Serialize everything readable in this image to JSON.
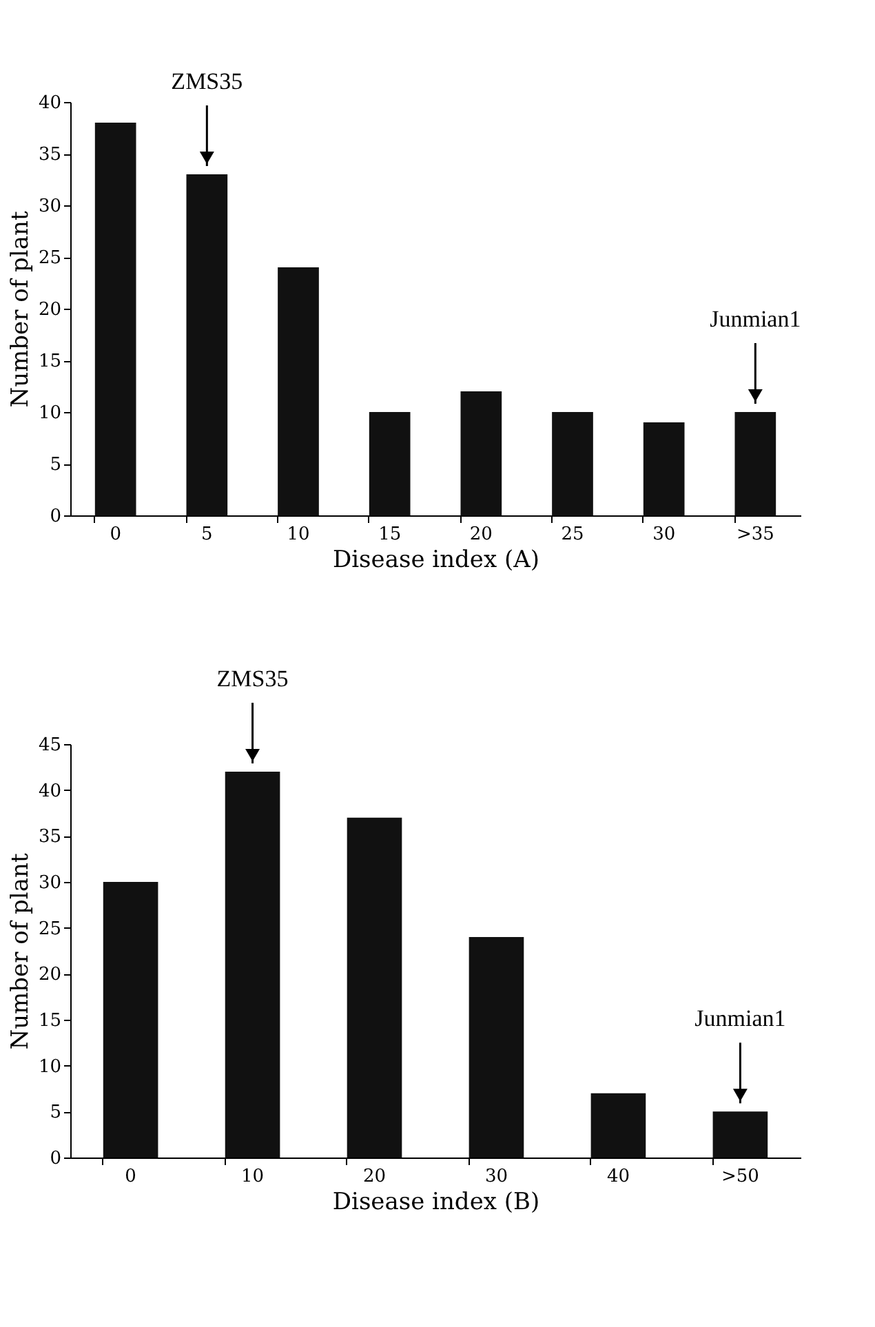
{
  "chart_data": [
    {
      "type": "bar",
      "xlabel": "Disease index (A)",
      "ylabel": "Number of plant",
      "categories": [
        "0",
        "5",
        "10",
        "15",
        "20",
        "25",
        "30",
        ">35"
      ],
      "values": [
        38,
        33,
        24,
        10,
        12,
        10,
        9,
        10
      ],
      "color": "#111111",
      "ylim": [
        0,
        40
      ],
      "yticks": [
        0,
        5,
        10,
        15,
        20,
        25,
        30,
        35,
        40
      ],
      "grid": false,
      "annotations": [
        {
          "text": "ZMS35",
          "x": "5",
          "y": 33
        },
        {
          "text": "Junmian1",
          "x": ">35",
          "y": 10
        }
      ]
    },
    {
      "type": "bar",
      "xlabel": "Disease index (B)",
      "ylabel": "Number of plant",
      "categories": [
        "0",
        "10",
        "20",
        "30",
        "40",
        ">50"
      ],
      "values": [
        30,
        42,
        37,
        24,
        7,
        5
      ],
      "color": "#111111",
      "ylim": [
        0,
        45
      ],
      "yticks": [
        0,
        5,
        10,
        15,
        20,
        25,
        30,
        35,
        40,
        45
      ],
      "grid": false,
      "annotations": [
        {
          "text": "ZMS35",
          "x": "10",
          "y": 42
        },
        {
          "text": "Junmian1",
          "x": ">50",
          "y": 5
        }
      ]
    }
  ]
}
